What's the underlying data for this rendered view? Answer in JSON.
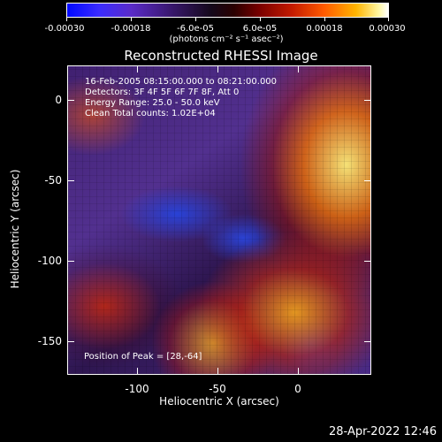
{
  "colorbar": {
    "tick_labels": [
      "-0.00030",
      "-0.00018",
      "-6.0e-05",
      "6.0e-05",
      "0.00018",
      "0.00030"
    ],
    "units": "(photons cm⁻² s⁻¹ asec⁻²)"
  },
  "title": "Reconstructed RHESSI Image",
  "annotations": {
    "line1": "16-Feb-2005 08:15:00.000 to 08:21:00.000",
    "line2": "Detectors: 3F 4F 5F 6F 7F 8F, Att 0",
    "line3": "Energy Range: 25.0 - 50.0 keV",
    "line4": "Clean     Total counts: 1.02E+04"
  },
  "peak": "Position of Peak = [28,-64]",
  "axes": {
    "x_title": "Heliocentric X (arcsec)",
    "y_title": "Heliocentric Y (arcsec)",
    "x_ticks": [
      "-100",
      "-50",
      "0"
    ],
    "y_ticks": [
      "0",
      "-50",
      "-100",
      "-150"
    ]
  },
  "timestamp": "28-Apr-2022 12:46"
}
